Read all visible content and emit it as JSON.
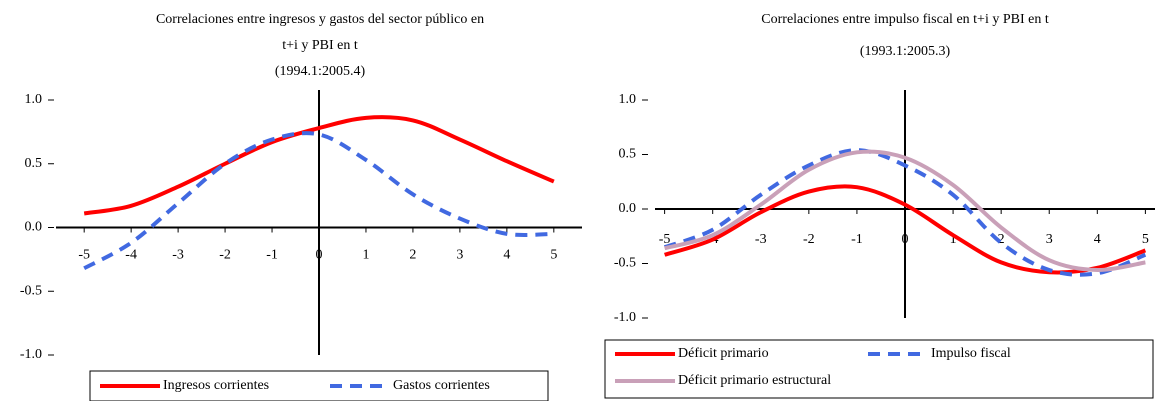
{
  "chart_data": [
    {
      "type": "line",
      "title": [
        "Correlaciones entre ingresos y gastos del sector público en",
        "t+i y  PBI en t",
        "(1994.1:2005.4)"
      ],
      "x": [
        -5,
        -4,
        -3,
        -2,
        -1,
        0,
        1,
        2,
        3,
        4,
        5
      ],
      "series": [
        {
          "name": "Ingresos corrientes",
          "color": "#ff0000",
          "dash": false,
          "values": [
            0.11,
            0.17,
            0.32,
            0.5,
            0.67,
            0.78,
            0.86,
            0.84,
            0.69,
            0.52,
            0.36
          ]
        },
        {
          "name": "Gastos corrientes",
          "color": "#4169e1",
          "dash": true,
          "values": [
            -0.32,
            -0.12,
            0.19,
            0.5,
            0.69,
            0.73,
            0.53,
            0.26,
            0.07,
            -0.05,
            -0.05
          ]
        }
      ],
      "xlim": [
        -5.6,
        5.6
      ],
      "ylim": [
        -1,
        1
      ],
      "xticks": [
        -5,
        -4,
        -3,
        -2,
        -1,
        0,
        1,
        2,
        3,
        4,
        5
      ],
      "yticks": [
        {
          "value": 1,
          "label": "1.0"
        },
        {
          "value": 0.5,
          "label": "0.5"
        },
        {
          "value": 0,
          "label": "0.0"
        },
        {
          "value": -0.5,
          "label": "-0.5"
        },
        {
          "value": -1,
          "label": "-1.0"
        }
      ]
    },
    {
      "type": "line",
      "title": [
        "Correlaciones entre impulso fiscal en t+i y  PBI en t",
        "(1993.1:2005.3)"
      ],
      "x": [
        -5,
        -4,
        -3,
        -2,
        -1,
        0,
        1,
        2,
        3,
        4,
        5
      ],
      "series": [
        {
          "name": "Déficit primario",
          "color": "#ff0000",
          "dash": false,
          "values": [
            -0.42,
            -0.28,
            -0.03,
            0.16,
            0.2,
            0.04,
            -0.24,
            -0.49,
            -0.58,
            -0.54,
            -0.38
          ]
        },
        {
          "name": "Impulso fiscal",
          "color": "#4169e1",
          "dash": true,
          "values": [
            -0.35,
            -0.19,
            0.13,
            0.4,
            0.54,
            0.4,
            0.13,
            -0.31,
            -0.56,
            -0.59,
            -0.42
          ]
        },
        {
          "name": "Déficit primario estructural",
          "color": "#c9a0b8",
          "dash": false,
          "values": [
            -0.36,
            -0.24,
            0.04,
            0.36,
            0.52,
            0.47,
            0.22,
            -0.17,
            -0.47,
            -0.56,
            -0.49
          ]
        }
      ],
      "xlim": [
        -5.2,
        5.2
      ],
      "ylim": [
        -1,
        1
      ],
      "xticks": [
        -5,
        -4,
        -3,
        -2,
        -1,
        0,
        1,
        2,
        3,
        4,
        5
      ],
      "yticks": [
        {
          "value": 1,
          "label": "1.0"
        },
        {
          "value": 0.5,
          "label": "0.5"
        },
        {
          "value": 0,
          "label": "0.0"
        },
        {
          "value": -0.5,
          "label": "-0.5"
        },
        {
          "value": -1,
          "label": "-1.0"
        }
      ]
    }
  ]
}
